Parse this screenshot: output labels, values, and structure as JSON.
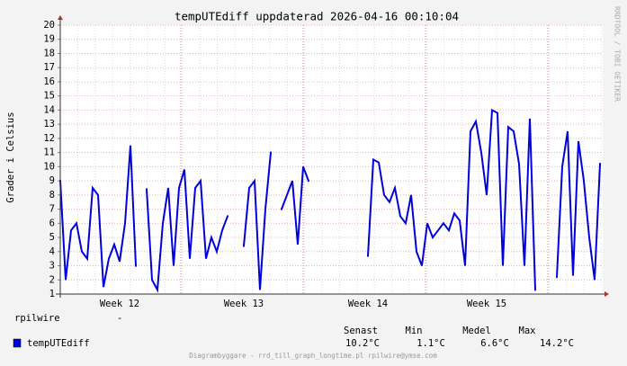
{
  "chart_data": {
    "type": "line",
    "title": "tempUTEdiff uppdaterad 2026-04-16 00:10:04",
    "y_label": "Grader i Celsius",
    "watermark": "RRDTOOL / TOBI OETIKER",
    "host": "rpilwire",
    "host_value": "-",
    "footer": "Diagrambyggare - rrd_till_graph_longtime.pl rpilwire@ymse.com",
    "categories": [
      null,
      null,
      null,
      null,
      null,
      null,
      null,
      null,
      null,
      null,
      null,
      "Week 12",
      null,
      null,
      null,
      null,
      null,
      null,
      null,
      null,
      null,
      null,
      null,
      null,
      null,
      null,
      null,
      null,
      null,
      null,
      null,
      null,
      null,
      null,
      "Week 13",
      null,
      null,
      null,
      null,
      null,
      null,
      null,
      null,
      null,
      null,
      null,
      null,
      null,
      null,
      null,
      null,
      null,
      null,
      null,
      null,
      null,
      null,
      "Week 14",
      null,
      null,
      null,
      null,
      null,
      null,
      null,
      null,
      null,
      null,
      null,
      null,
      null,
      null,
      null,
      null,
      null,
      null,
      null,
      null,
      null,
      "Week 15",
      null,
      null,
      null,
      null,
      null,
      null,
      null,
      null,
      null,
      null,
      null,
      null,
      null,
      null,
      null,
      null,
      null,
      null,
      null,
      null,
      null
    ],
    "series": [
      {
        "name": "tempUTEdiff",
        "color": "#0000dd",
        "values": [
          9,
          2,
          5.5,
          6,
          4,
          3.5,
          8.5,
          8,
          1.5,
          3.5,
          4.5,
          3.3,
          6,
          11.5,
          3,
          null,
          8.4,
          2,
          1.3,
          6,
          8.5,
          3,
          8.5,
          9.8,
          3.5,
          8.5,
          9,
          3.5,
          5,
          4,
          5.5,
          6.5,
          null,
          null,
          4.4,
          8.5,
          9,
          1.3,
          7,
          11,
          null,
          7,
          8,
          9,
          4.5,
          10,
          9,
          null,
          null,
          null,
          null,
          null,
          null,
          null,
          null,
          null,
          null,
          3.7,
          10.5,
          10.3,
          8,
          7.5,
          8.5,
          6.5,
          6,
          8,
          4,
          3,
          6,
          5,
          5.5,
          6,
          5.5,
          6.7,
          6.2,
          3,
          12.5,
          13.2,
          11,
          8,
          14,
          13.8,
          3,
          12.8,
          12.5,
          10.2,
          3,
          13.4,
          1.3,
          null,
          null,
          null,
          2.2,
          10,
          12.5,
          2.3,
          11.8,
          9,
          5,
          2,
          10.2
        ]
      }
    ],
    "legend_stats": {
      "headers": [
        "Senast",
        "Min",
        "Medel",
        "Max"
      ],
      "values": [
        "10.2°C",
        "1.1°C",
        "6.6°C",
        "14.2°C"
      ]
    },
    "ylim": [
      1,
      20
    ],
    "yticks": [
      1,
      2,
      3,
      4,
      5,
      6,
      7,
      8,
      9,
      10,
      11,
      12,
      13,
      14,
      15,
      16,
      17,
      18,
      19,
      20
    ],
    "grid": true
  }
}
